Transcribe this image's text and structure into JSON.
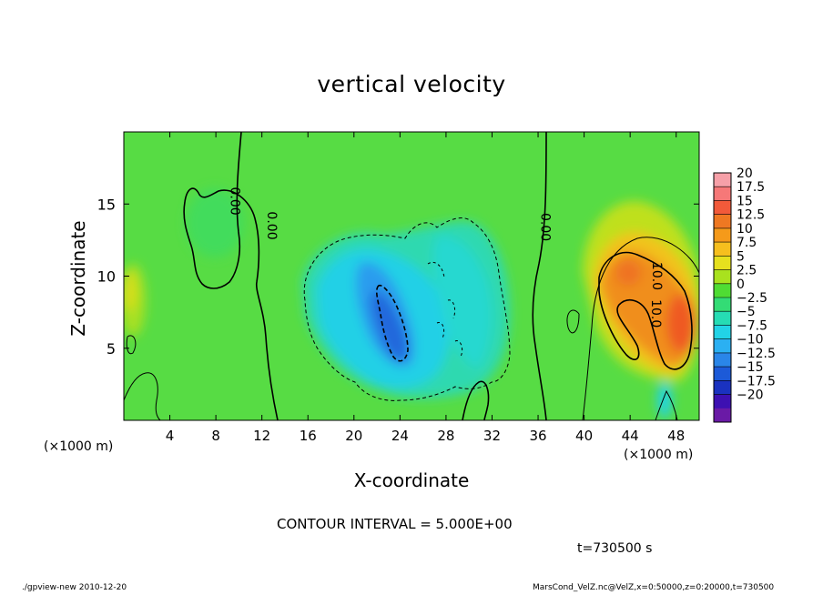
{
  "chart_data": {
    "type": "heatmap",
    "title": "vertical velocity",
    "xlabel": "X-coordinate",
    "ylabel": "Z-coordinate",
    "x_unit_label": "(×1000 m)",
    "x_ticks": [
      4,
      8,
      12,
      16,
      20,
      24,
      28,
      32,
      36,
      40,
      44,
      48
    ],
    "y_ticks": [
      5,
      10,
      15
    ],
    "xlim": [
      0,
      50
    ],
    "ylim": [
      0,
      20
    ],
    "colorbar": {
      "labels": [
        "20",
        "17.5",
        "15",
        "12.5",
        "10",
        "7.5",
        "5",
        "2.5",
        "0",
        "−2.5",
        "−5",
        "−7.5",
        "−10",
        "−12.5",
        "−15",
        "−17.5",
        "−20"
      ],
      "colors": [
        "#f6a0a8",
        "#f67878",
        "#f25a3a",
        "#ef7822",
        "#f59a1a",
        "#f6bf1e",
        "#e6e01e",
        "#a9e21e",
        "#4fdc33",
        "#33dc75",
        "#26dcb4",
        "#22d3e6",
        "#2bb0f2",
        "#2a86e8",
        "#1c5ad8",
        "#1a32c0",
        "#3d10b2",
        "#6a1aa6"
      ]
    },
    "contour_labels": [
      {
        "text": "0.00",
        "x": 9.6,
        "y": 15.2
      },
      {
        "text": "0.00",
        "x": 12.8,
        "y": 13.5
      },
      {
        "text": "0.00",
        "x": 36.6,
        "y": 13.4
      },
      {
        "text": "10.0",
        "x": 46.3,
        "y": 10.0
      },
      {
        "text": "10.0",
        "x": 46.2,
        "y": 7.4
      }
    ],
    "features": [
      {
        "kind": "updraft",
        "x": [
          41,
          50
        ],
        "z": [
          2,
          15
        ],
        "max": 15
      },
      {
        "kind": "downdraft",
        "x": [
          15,
          35
        ],
        "z": [
          1.5,
          14
        ],
        "min": -12.5
      }
    ]
  },
  "annotations": {
    "contour_interval": "CONTOUR INTERVAL = 5.000E+00",
    "time": "t=730500 s",
    "footer_left": "./gpview-new  2010-12-20",
    "footer_right": "MarsCond_VelZ.nc@VelZ,x=0:50000,z=0:20000,t=730500"
  }
}
